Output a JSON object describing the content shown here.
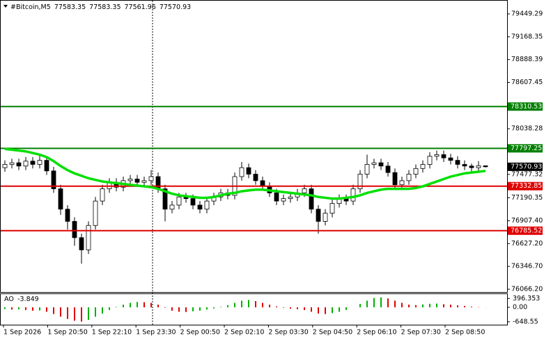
{
  "chart_data": {
    "type": "candlestick",
    "symbol": "#Bitcoin,M5",
    "open": [
      77560,
      77600,
      77620,
      77580,
      77640,
      77600,
      77650,
      77520,
      77300,
      77050,
      76900,
      76700,
      76550,
      76850,
      77150,
      77300,
      77380,
      77320,
      77400,
      77420,
      77380,
      77400,
      77450,
      77300,
      77050,
      77100,
      77200,
      77180,
      77100,
      77050,
      77150,
      77200,
      77250,
      77220,
      77450,
      77560,
      77480,
      77400,
      77330,
      77250,
      77150,
      77180,
      77200,
      77250,
      77300,
      77050,
      76900,
      77000,
      77120,
      77180,
      77150,
      77300,
      77480,
      77600,
      77620,
      77580,
      77500,
      77350,
      77400,
      77480,
      77550,
      77600,
      77700,
      77720,
      77680,
      77650,
      77600,
      77580,
      77560,
      77583.35
    ],
    "high": [
      77650,
      77670,
      77670,
      77690,
      77690,
      77720,
      77700,
      77570,
      77350,
      77100,
      76950,
      76750,
      76900,
      77200,
      77350,
      77430,
      77430,
      77450,
      77470,
      77470,
      77450,
      77530,
      77500,
      77350,
      77150,
      77250,
      77250,
      77230,
      77150,
      77200,
      77250,
      77300,
      77300,
      77500,
      77630,
      77610,
      77530,
      77450,
      77380,
      77300,
      77230,
      77250,
      77300,
      77350,
      77350,
      77100,
      77050,
      77170,
      77230,
      77230,
      77350,
      77530,
      77720,
      77670,
      77670,
      77630,
      77550,
      77450,
      77530,
      77600,
      77650,
      77750,
      77770,
      77770,
      77730,
      77700,
      77650,
      77610,
      77640,
      77583.35
    ],
    "low": [
      77510,
      77550,
      77530,
      77530,
      77550,
      77550,
      77470,
      77250,
      76980,
      76800,
      76600,
      76380,
      76500,
      76800,
      77100,
      77250,
      77270,
      77270,
      77350,
      77330,
      77330,
      77350,
      77250,
      76900,
      77000,
      77050,
      77130,
      77050,
      77000,
      77000,
      77100,
      77150,
      77170,
      77170,
      77400,
      77430,
      77350,
      77280,
      77200,
      77100,
      77100,
      77130,
      77150,
      77200,
      77000,
      76750,
      76850,
      76950,
      77070,
      77100,
      77100,
      77250,
      77430,
      77550,
      77530,
      77450,
      77300,
      77300,
      77350,
      77430,
      77500,
      77550,
      77650,
      77630,
      77600,
      77550,
      77530,
      77510,
      77510,
      77561.96
    ],
    "close": [
      77600,
      77620,
      77580,
      77640,
      77600,
      77650,
      77520,
      77300,
      77050,
      76900,
      76700,
      76550,
      76850,
      77150,
      77300,
      77380,
      77320,
      77400,
      77420,
      77380,
      77400,
      77450,
      77300,
      77050,
      77100,
      77200,
      77180,
      77100,
      77050,
      77150,
      77200,
      77250,
      77220,
      77450,
      77560,
      77480,
      77400,
      77330,
      77250,
      77150,
      77180,
      77200,
      77250,
      77300,
      77050,
      76900,
      77000,
      77120,
      77180,
      77150,
      77300,
      77480,
      77600,
      77620,
      77580,
      77500,
      77350,
      77400,
      77480,
      77550,
      77600,
      77700,
      77720,
      77680,
      77650,
      77600,
      77580,
      77560,
      77583.35,
      77570.93
    ],
    "bull_color": "#ffffff",
    "bear_color": "#000000",
    "ma": {
      "color": "#00e000",
      "values": [
        77790,
        77780,
        77770,
        77760,
        77740,
        77720,
        77690,
        77640,
        77580,
        77530,
        77490,
        77460,
        77430,
        77410,
        77390,
        77380,
        77370,
        77360,
        77350,
        77340,
        77330,
        77320,
        77300,
        77270,
        77240,
        77220,
        77210,
        77200,
        77190,
        77190,
        77200,
        77220,
        77240,
        77250,
        77270,
        77280,
        77290,
        77290,
        77280,
        77270,
        77260,
        77250,
        77240,
        77230,
        77220,
        77200,
        77190,
        77180,
        77180,
        77190,
        77200,
        77220,
        77250,
        77270,
        77290,
        77300,
        77300,
        77300,
        77300,
        77310,
        77330,
        77360,
        77390,
        77420,
        77450,
        77470,
        77490,
        77500,
        77510,
        77520
      ]
    },
    "levels": [
      {
        "value": 78310.53,
        "color": "#008000"
      },
      {
        "value": 77797.25,
        "color": "#008000"
      },
      {
        "value": 77332.85,
        "color": "#e00000"
      },
      {
        "value": 76785.52,
        "color": "#e00000"
      }
    ],
    "ylim": [
      76032,
      79620
    ],
    "yticks": [
      79449.29,
      79168.35,
      78888.39,
      78607.45,
      78038.28,
      77477.32,
      77190.35,
      {
        "value": 76907.4,
        "label": "76907.40"
      },
      {
        "value": 76627.2,
        "label": "76627.20"
      },
      {
        "value": 76346.7,
        "label": "76346.70"
      },
      {
        "value": 76066.2,
        "label": "76066.20"
      }
    ],
    "x_labels": [
      "1 Sep 2026",
      "1 Sep 20:50",
      "1 Sep 22:10",
      "1 Sep 23:30",
      "2 Sep 00:50",
      "2 Sep 02:10",
      "2 Sep 03:30",
      "2 Sep 04:50",
      "2 Sep 06:10",
      "2 Sep 07:30",
      "2 Sep 08:50"
    ],
    "ao": {
      "name": "AO",
      "up_color": "#00b000",
      "down_color": "#e00000",
      "values": [
        -80,
        -100,
        -90,
        -120,
        -150,
        -140,
        -200,
        -300,
        -420,
        -520,
        -600,
        -640,
        -560,
        -420,
        -280,
        -120,
        20,
        120,
        200,
        240,
        230,
        200,
        120,
        -20,
        -150,
        -200,
        -210,
        -180,
        -150,
        -100,
        -50,
        20,
        100,
        200,
        300,
        330,
        280,
        200,
        120,
        40,
        -20,
        -60,
        -80,
        -120,
        -200,
        -280,
        -300,
        -260,
        -200,
        -120,
        0,
        150,
        300,
        420,
        450,
        400,
        300,
        200,
        120,
        100,
        130,
        160,
        170,
        140,
        120,
        90,
        60,
        30,
        10,
        -3.849
      ],
      "ylim": [
        -780,
        594
      ],
      "yticks": [
        396.353,
        {
          "value": 0,
          "label": "0.00"
        },
        -648.55
      ]
    }
  }
}
